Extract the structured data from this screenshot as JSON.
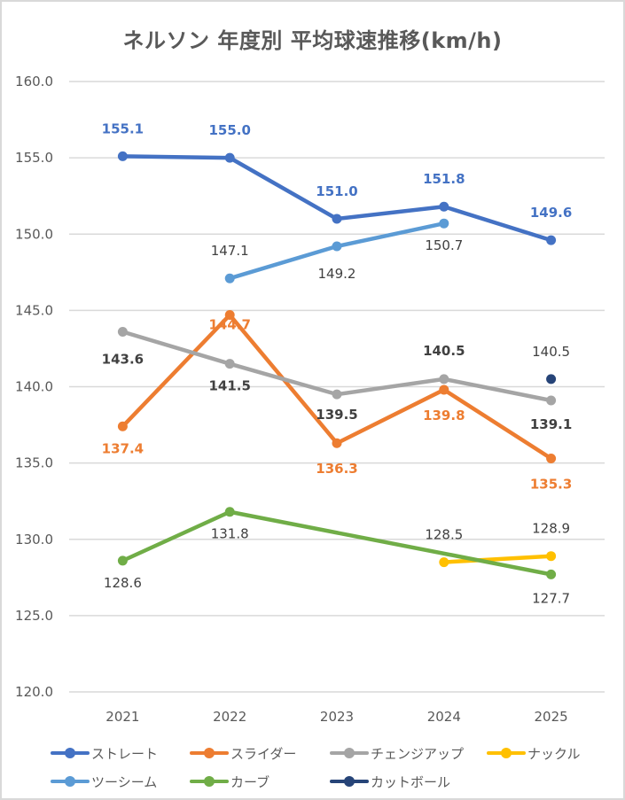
{
  "chart_data": {
    "type": "line",
    "title": "ネルソン 年度別 平均球速推移(km/h)",
    "xlabel": "",
    "ylabel": "",
    "ylim": [
      120,
      160
    ],
    "yticks": [
      "160.0",
      "155.0",
      "150.0",
      "145.0",
      "140.0",
      "135.0",
      "130.0",
      "125.0",
      "120.0"
    ],
    "ytick_values": [
      160,
      155,
      150,
      145,
      140,
      135,
      130,
      125,
      120
    ],
    "categories": [
      "2021",
      "2022",
      "2023",
      "2024",
      "2025"
    ],
    "grid": true,
    "legend_position": "bottom",
    "series": [
      {
        "name": "ストレート",
        "color": "#4472c4",
        "label_color": "#4472c4",
        "label_bold": true,
        "label_pos": "above",
        "values": [
          155.1,
          155.0,
          151.0,
          151.8,
          149.6
        ],
        "labels": [
          "155.1",
          "155.0",
          "151.0",
          "151.8",
          "149.6"
        ]
      },
      {
        "name": "スライダー",
        "color": "#ed7d31",
        "label_color": "#ed7d31",
        "label_bold": true,
        "label_pos": "below",
        "values": [
          137.4,
          144.7,
          136.3,
          139.8,
          135.3
        ],
        "labels": [
          "137.4",
          "144.7",
          "136.3",
          "139.8",
          "135.3"
        ]
      },
      {
        "name": "チェンジアップ",
        "color": "#a5a5a5",
        "label_color": "#404040",
        "label_bold": true,
        "label_pos": "mixed",
        "values": [
          143.6,
          141.5,
          139.5,
          140.5,
          139.1
        ],
        "labels": [
          "143.6",
          "141.5",
          "139.5",
          "140.5",
          "139.1"
        ]
      },
      {
        "name": "ナックル",
        "color": "#ffc000",
        "label_color": "#404040",
        "label_bold": false,
        "label_pos": "above",
        "values": [
          null,
          null,
          null,
          128.5,
          128.9
        ],
        "labels": [
          null,
          null,
          null,
          "128.5",
          "128.9"
        ]
      },
      {
        "name": "ツーシーム",
        "color": "#5b9bd5",
        "label_color": "#404040",
        "label_bold": false,
        "label_pos": "mixed",
        "values": [
          null,
          147.1,
          149.2,
          150.7,
          null
        ],
        "labels": [
          null,
          "147.1",
          "149.2",
          "150.7",
          null
        ]
      },
      {
        "name": "カーブ",
        "color": "#70ad47",
        "label_color": "#404040",
        "label_bold": false,
        "label_pos": "mixed",
        "values": [
          128.6,
          131.8,
          null,
          null,
          127.7
        ],
        "labels": [
          "128.6",
          "131.8",
          null,
          null,
          "127.7"
        ]
      },
      {
        "name": "カットボール",
        "color": "#264478",
        "label_color": "#404040",
        "label_bold": false,
        "label_pos": "above",
        "values": [
          null,
          null,
          null,
          null,
          140.5
        ],
        "labels": [
          null,
          null,
          null,
          null,
          "140.5"
        ]
      }
    ]
  }
}
